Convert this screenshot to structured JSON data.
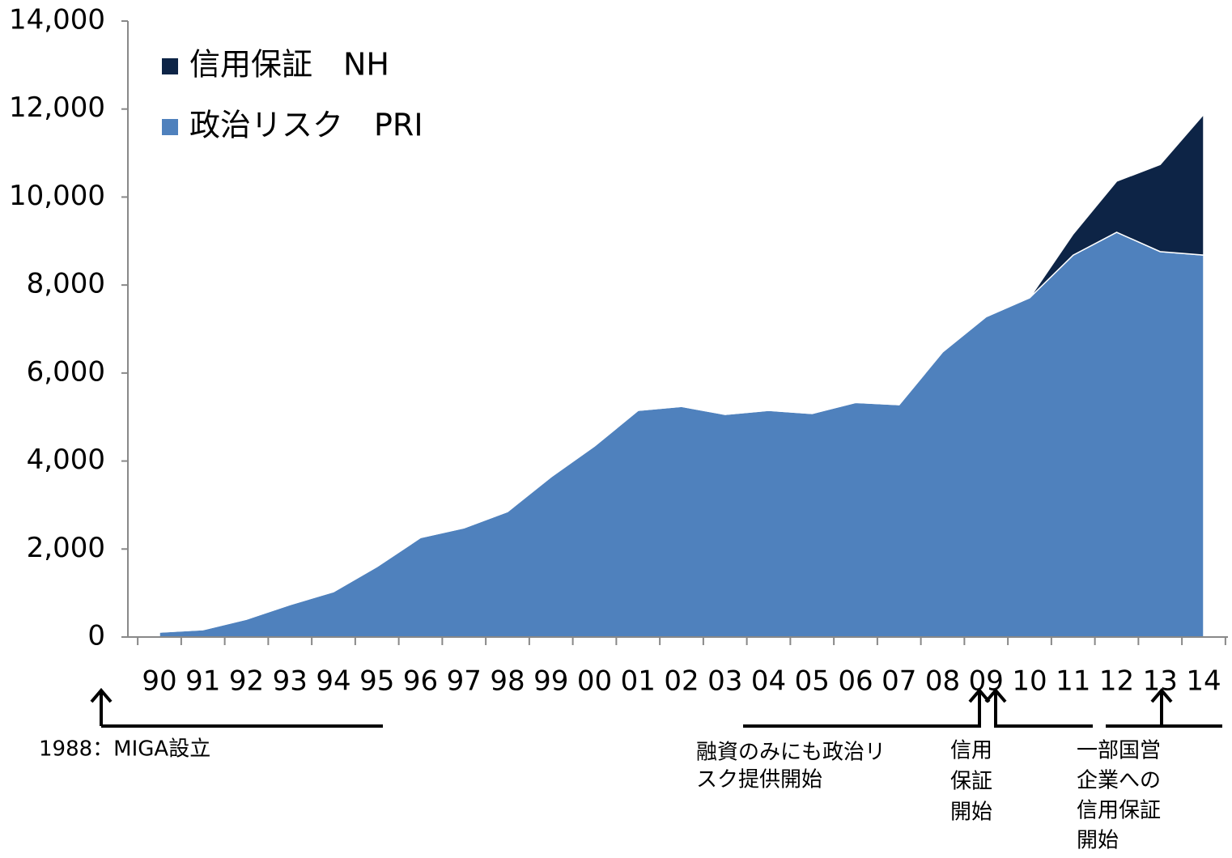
{
  "chart_data": {
    "type": "stacked_area",
    "categories": [
      "90",
      "91",
      "92",
      "93",
      "94",
      "95",
      "96",
      "97",
      "98",
      "99",
      "00",
      "01",
      "02",
      "03",
      "04",
      "05",
      "06",
      "07",
      "08",
      "09",
      "10",
      "11",
      "12",
      "13",
      "14"
    ],
    "series": [
      {
        "name": "政治リスク　PRI",
        "color": "#4f81bd",
        "values": [
          110,
          165,
          405,
          735,
          1030,
          1600,
          2260,
          2480,
          2850,
          3640,
          4340,
          5150,
          5240,
          5060,
          5150,
          5080,
          5330,
          5280,
          6480,
          7280,
          7710,
          8680,
          9200,
          8760,
          8680
        ]
      },
      {
        "name": "信用保証　NH",
        "color": "#0d2446",
        "values": [
          0,
          0,
          0,
          0,
          0,
          0,
          0,
          0,
          0,
          0,
          0,
          0,
          0,
          0,
          0,
          0,
          0,
          0,
          0,
          0,
          0,
          480,
          1160,
          1980,
          3200
        ]
      }
    ],
    "ylim": [
      0,
      14000
    ],
    "yticks": [
      0,
      {
        "value": 2000,
        "label": "2,000"
      },
      {
        "value": 4000,
        "label": "4,000"
      },
      {
        "value": 6000,
        "label": "6,000"
      },
      {
        "value": 8000,
        "label": "8,000"
      },
      {
        "value": 10000,
        "label": "10,000"
      },
      {
        "value": 12000,
        "label": "12,000"
      },
      {
        "value": 14000,
        "label": "14,000"
      }
    ],
    "annotations": [
      [
        "1988：MIGA設立"
      ],
      [
        "融資のみにも政治リ",
        "スク提供開始"
      ],
      [
        "信用",
        "保証",
        "開始"
      ],
      [
        "一部国営",
        "企業への",
        "信用保証",
        "開始"
      ]
    ]
  }
}
